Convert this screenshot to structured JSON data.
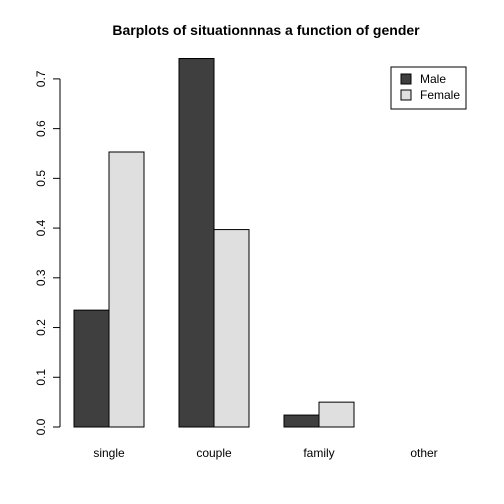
{
  "chart_data": {
    "type": "bar",
    "title": "Barplots of situationnnas a function of gender",
    "xlabel": "",
    "ylabel": "",
    "categories": [
      "single",
      "couple",
      "family",
      "other"
    ],
    "series": [
      {
        "name": "Male",
        "color": "#3f3f3f",
        "values": [
          0.235,
          0.741,
          0.024,
          0.0
        ]
      },
      {
        "name": "Female",
        "color": "#dfdfdf",
        "values": [
          0.553,
          0.397,
          0.05,
          0.0
        ]
      }
    ],
    "ylim": [
      0,
      0.74
    ],
    "yticks": [
      "0.0",
      "0.1",
      "0.2",
      "0.3",
      "0.4",
      "0.5",
      "0.6",
      "0.7"
    ],
    "grid": false,
    "legend": "top-right"
  }
}
